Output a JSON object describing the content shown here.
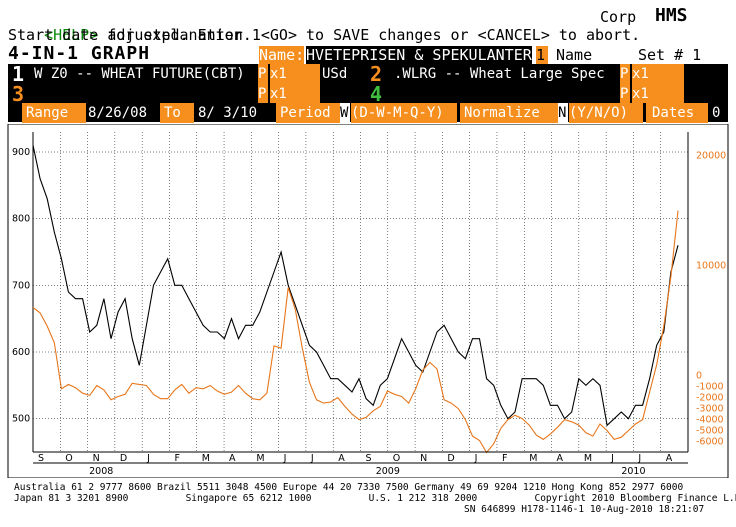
{
  "header": {
    "help_key": "<HELP>",
    "help_text": " for explanation.",
    "market": "Corp",
    "ticker": "HMS",
    "status_line": "Start date adjusted. Enter 1<GO> to SAVE changes or <CANCEL> to abort.",
    "title": "4-IN-1 GRAPH",
    "name_label": "Name:",
    "name_value": "HVETEPRISEN & SPEKULANTER",
    "name_index": "1",
    "name_word": "Name",
    "set_label": "Set # 1"
  },
  "series_rows": [
    {
      "num": "1",
      "desc": "W Z0 -- WHEAT FUTURE(CBT)",
      "p_label": "P",
      "x": "x1",
      "ccy": "USd"
    },
    {
      "num": "2",
      "desc": ".WLRG -- Wheat Large Spec",
      "p_label": "P",
      "x": "x1",
      "ccy": ""
    },
    {
      "num": "3",
      "desc": "",
      "p_label": "P",
      "x": "x1",
      "ccy": ""
    },
    {
      "num": "4",
      "desc": "",
      "p_label": "P",
      "x": "x1",
      "ccy": ""
    }
  ],
  "controls": {
    "range_label": "Range",
    "start_date": "8/26/08",
    "to_label": "To",
    "end_date": "8/ 3/10",
    "period_label": "Period",
    "period_value": "W",
    "period_options": "(D-W-M-Q-Y)",
    "normalize_label": "Normalize",
    "normalize_value": "N",
    "normalize_options": "(Y/N/O)",
    "dates_label": "Dates",
    "dates_value": "0"
  },
  "chart_data": {
    "type": "line",
    "colors": {
      "series1": "#000000",
      "series2": "#e8761a"
    },
    "left_axis": {
      "range": [
        450,
        930
      ],
      "ticks": [
        500,
        600,
        700,
        800,
        900
      ]
    },
    "right_axis": {
      "range": [
        -6950,
        22150
      ],
      "ticks": [
        20000,
        10000,
        0,
        -1000,
        -2000,
        -3000,
        -4000,
        -5000,
        -6000
      ]
    },
    "month_labels": [
      "S",
      "O",
      "N",
      "D",
      "J",
      "F",
      "M",
      "A",
      "M",
      "J",
      "J",
      "A",
      "S",
      "O",
      "N",
      "D",
      "J",
      "F",
      "M",
      "A",
      "M",
      "J",
      "J",
      "A"
    ],
    "year_labels": [
      "2008",
      "2009",
      "2010"
    ],
    "grid": true,
    "series": [
      {
        "axis": "left",
        "values": [
          910,
          860,
          830,
          780,
          740,
          690,
          680,
          680,
          630,
          640,
          680,
          620,
          660,
          680,
          620,
          580,
          640,
          700,
          720,
          740,
          700,
          700,
          680,
          660,
          640,
          630,
          630,
          620,
          650,
          620,
          640,
          640,
          660,
          690,
          720,
          750,
          700,
          670,
          640,
          610,
          600,
          580,
          560,
          560,
          550,
          540,
          560,
          530,
          520,
          550,
          560,
          590,
          620,
          600,
          580,
          570,
          600,
          630,
          640,
          620,
          600,
          590,
          620,
          620,
          560,
          550,
          520,
          500,
          510,
          560,
          560,
          560,
          550,
          520,
          520,
          500,
          510,
          560,
          550,
          560,
          550,
          490,
          500,
          510,
          500,
          520,
          520,
          560,
          610,
          630,
          720,
          760
        ]
      },
      {
        "axis": "right",
        "values": [
          6200,
          5700,
          4500,
          3000,
          -1200,
          -800,
          -1100,
          -1600,
          -1800,
          -900,
          -1300,
          -2200,
          -1900,
          -1700,
          -700,
          -800,
          -900,
          -1700,
          -2100,
          -2100,
          -1300,
          -800,
          -1600,
          -1100,
          -1200,
          -900,
          -1400,
          -1700,
          -1500,
          -900,
          -1600,
          -2100,
          -2200,
          -1600,
          2700,
          2500,
          8000,
          6000,
          2500,
          -600,
          -2200,
          -2500,
          -2400,
          -2000,
          -2800,
          -3500,
          -4000,
          -3800,
          -3200,
          -2800,
          -1400,
          -1700,
          -1900,
          -2500,
          -1200,
          500,
          1200,
          600,
          -2200,
          -2500,
          -3000,
          -4000,
          -5500,
          -5900,
          -7000,
          -6200,
          -4800,
          -4000,
          -3600,
          -3900,
          -4500,
          -5400,
          -5800,
          -5300,
          -4700,
          -4000,
          -4200,
          -4500,
          -5200,
          -5500,
          -4400,
          -5000,
          -5800,
          -5600,
          -5000,
          -4400,
          -4000,
          -1500,
          1000,
          4500,
          9000,
          15000
        ]
      }
    ]
  },
  "footer": {
    "line1": "Australia 61 2 9777 8600 Brazil 5511 3048 4500 Europe 44 20 7330 7500 Germany 49 69 9204 1210 Hong Kong 852 2977 6000",
    "line2": "Japan 81 3 3201 8900          Singapore 65 6212 1000          U.S. 1 212 318 2000          Copyright 2010 Bloomberg Finance L.P.",
    "line3": "SN 646899 H178-1146-1 10-Aug-2010 18:21:07"
  }
}
